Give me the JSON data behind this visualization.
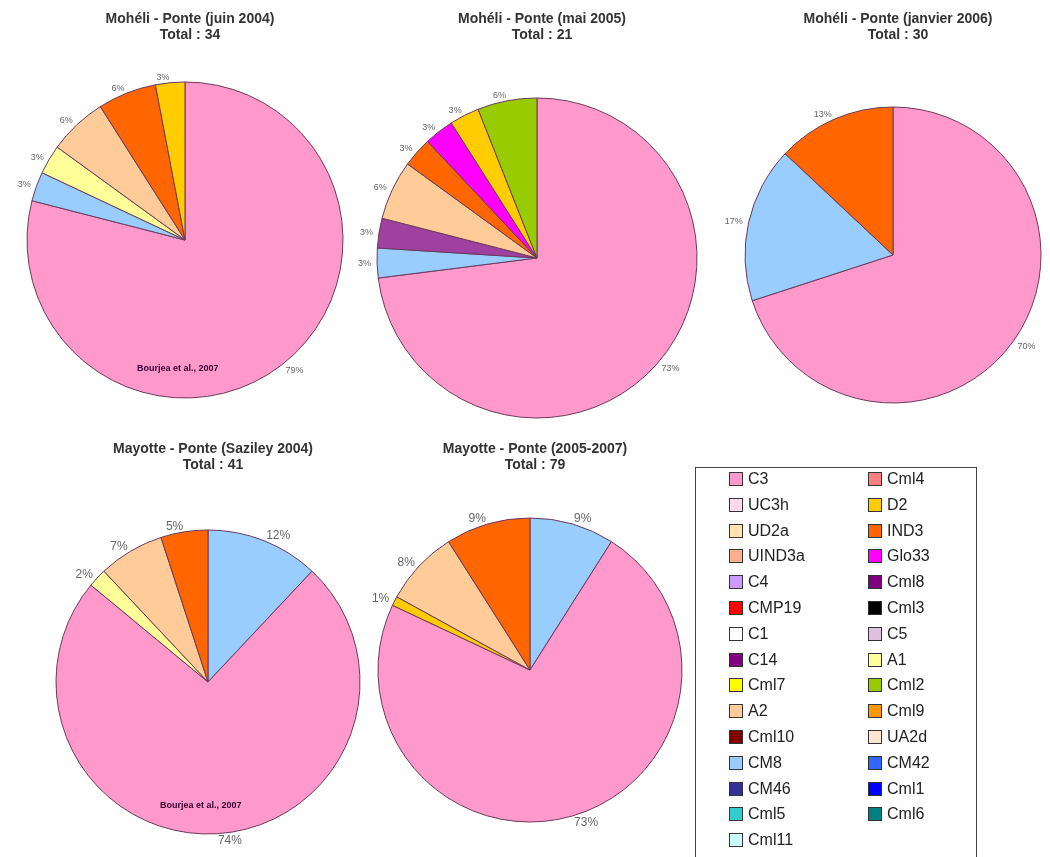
{
  "chart_data": [
    {
      "type": "pie",
      "title": "Mohéli - Ponte (juin 2004)",
      "subtitle": "Total : 34",
      "values": [
        79,
        3,
        3,
        6,
        6,
        3
      ],
      "value_labels": [
        "79%",
        "3%",
        "3%",
        "6%",
        "6%",
        "3%"
      ],
      "colors": [
        "#ff99cc",
        "#99ccff",
        "#ffff99",
        "#ffcc99",
        "#ff6600",
        "#ffcc00"
      ],
      "annotations": [
        "Bourjea et al., 2007"
      ]
    },
    {
      "type": "pie",
      "title": "Mohéli - Ponte (mai 2005)",
      "subtitle": "Total : 21",
      "values": [
        73,
        3,
        3,
        6,
        3,
        3,
        3,
        6
      ],
      "value_labels": [
        "73%",
        "3%",
        "3%",
        "6%",
        "3%",
        "3%",
        "3%",
        "6%"
      ],
      "colors": [
        "#ff99cc",
        "#99ccff",
        "#a040a0",
        "#ffcc99",
        "#ff6600",
        "#ff00ff",
        "#ffcc00",
        "#99cc00"
      ]
    },
    {
      "type": "pie",
      "title": "Mohéli - Ponte (janvier 2006)",
      "subtitle": "Total : 30",
      "values": [
        70,
        17,
        13
      ],
      "value_labels": [
        "70%",
        "17%",
        "13%"
      ],
      "colors": [
        "#ff99cc",
        "#99ccff",
        "#ff6600"
      ]
    },
    {
      "type": "pie",
      "title": "Mayotte - Ponte (Saziley 2004)",
      "subtitle": "Total : 41",
      "values": [
        12,
        74,
        2,
        7,
        5
      ],
      "value_labels": [
        "12%",
        "74%",
        "2%",
        "7%",
        "5%"
      ],
      "colors": [
        "#99ccff",
        "#ff99cc",
        "#ffff99",
        "#ffcc99",
        "#ff6600"
      ],
      "annotations": [
        "Bourjea et al., 2007"
      ]
    },
    {
      "type": "pie",
      "title": "Mayotte - Ponte (2005-2007)",
      "subtitle": "Total : 79",
      "values": [
        9,
        73,
        1,
        8,
        9
      ],
      "value_labels": [
        "9%",
        "73%",
        "1%",
        "8%",
        "9%"
      ],
      "colors": [
        "#99ccff",
        "#ff99cc",
        "#ffcc00",
        "#ffcc99",
        "#ff6600"
      ]
    },
    {
      "type": "other",
      "categories": [
        "C3",
        "Cml4",
        "UC3h",
        "D2",
        "UD2a",
        "IND3",
        "UIND3a",
        "Glo33",
        "C4",
        "Cml8",
        "CMP19",
        "Cml3",
        "C1",
        "C5",
        "C14",
        "A1",
        "Cml7",
        "Cml2",
        "A2",
        "Cml9",
        "Cml10",
        "UA2d",
        "CM8",
        "CM42",
        "CM46",
        "Cml1",
        "Cml5",
        "Cml6",
        "Cml11"
      ],
      "colors": [
        "#ff99cc",
        "#ff8080",
        "#ffd6ea",
        "#ffcc00",
        "#ffe4b0",
        "#ff6600",
        "#ffb090",
        "#ff00ff",
        "#cc99ff",
        "#800080",
        "#ff0000",
        "#000000",
        "#ffffff",
        "#e0c0e0",
        "#800080",
        "#ffff99",
        "#ffff00",
        "#99cc00",
        "#ffcc99",
        "#ff9900",
        "#800000",
        "#ffe6d0",
        "#99ccff",
        "#3366ff",
        "#333399",
        "#0000ff",
        "#33cccc",
        "#008080",
        "#ccffff"
      ]
    }
  ]
}
